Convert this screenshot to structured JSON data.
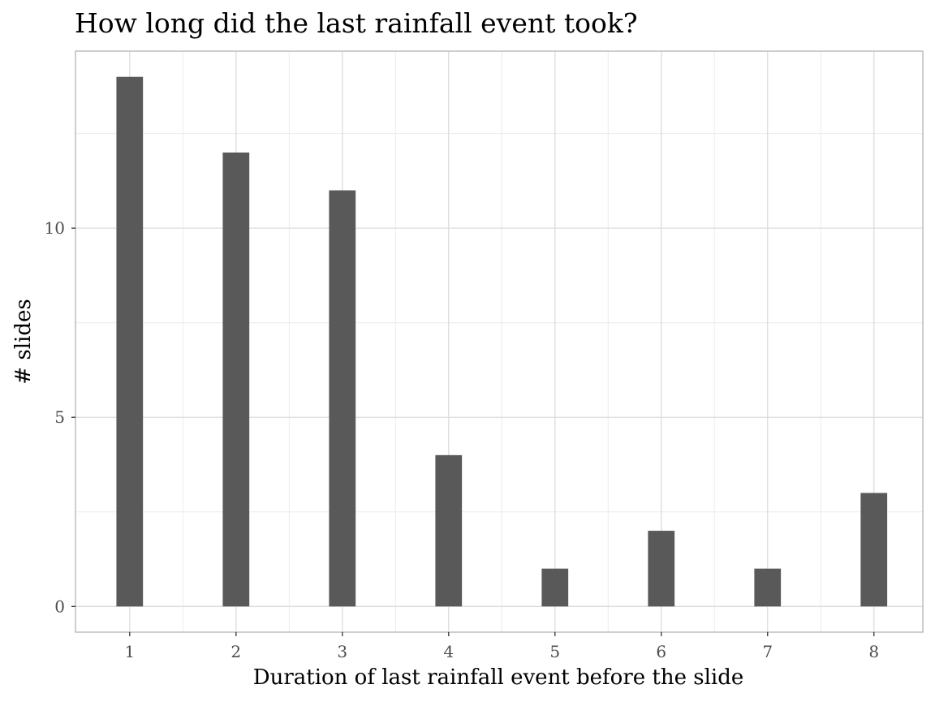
{
  "chart_data": {
    "type": "bar",
    "title": "How long did the last rainfall event took?",
    "xlabel": "Duration of last rainfall event before the slide",
    "ylabel": "# slides",
    "categories": [
      1,
      2,
      3,
      4,
      5,
      6,
      7,
      8
    ],
    "values": [
      14,
      12,
      11,
      4,
      1,
      2,
      1,
      3
    ],
    "xticks": [
      "1",
      "2",
      "3",
      "4",
      "5",
      "6",
      "7",
      "8"
    ],
    "yticks": [
      0,
      5,
      10
    ],
    "xlim": [
      0.49,
      8.46
    ],
    "ylim": [
      -0.68,
      14.68
    ],
    "bar_width": 0.25,
    "grid": true,
    "legend": "none",
    "colors": {
      "bar": "#595959",
      "grid_major": "#dcdcdc",
      "grid_minor": "#ececec",
      "panel_border": "#b3b3b3",
      "tick_text": "#4d4d4d"
    }
  }
}
